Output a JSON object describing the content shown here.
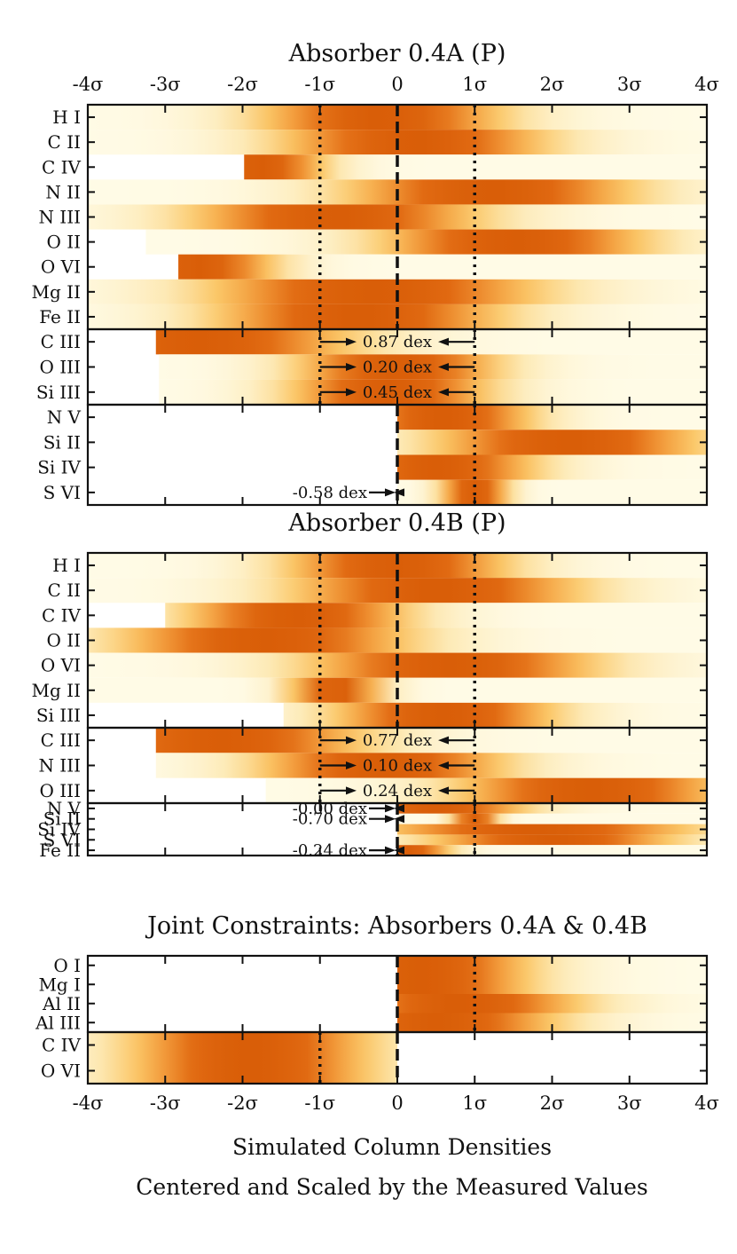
{
  "chart_data": {
    "type": "heatmap",
    "x_range": [
      -4,
      4
    ],
    "x_ticks": [
      "-4σ",
      "-3σ",
      "-2σ",
      "-1σ",
      "0",
      "1σ",
      "2σ",
      "3σ",
      "4σ"
    ],
    "x_tick_values": [
      -4,
      -3,
      -2,
      -1,
      0,
      1,
      2,
      3,
      4
    ],
    "xlabel_line1": "Simulated Column Densities",
    "xlabel_line2": "Centered and Scaled by the Measured Values",
    "colormap": [
      "#fffbe6",
      "#fde9b4",
      "#fbc768",
      "#f29a3a",
      "#e16a12",
      "#d95e08"
    ],
    "panels": [
      {
        "title": "Absorber 0.4A (P)",
        "groups": [
          {
            "kind": "detection",
            "rows": [
              {
                "label": "H I",
                "start": -4,
                "end": 4,
                "peak": -0.2,
                "width": 1.1
              },
              {
                "label": "C II",
                "start": -4,
                "end": 4,
                "peak": 0.2,
                "width": 1.2
              },
              {
                "label": "C IV",
                "start": -1.98,
                "end": 4,
                "peak": -1.8,
                "width": 0.6
              },
              {
                "label": "N II",
                "start": -4,
                "end": 4,
                "peak": 1.2,
                "width": 1.3
              },
              {
                "label": "N III",
                "start": -4,
                "end": 4,
                "peak": -0.8,
                "width": 1.3
              },
              {
                "label": "O II",
                "start": -3.25,
                "end": 4,
                "peak": 1.5,
                "width": 1.2
              },
              {
                "label": "O VI",
                "start": -2.83,
                "end": 4,
                "peak": -2.6,
                "width": 0.7
              },
              {
                "label": "Mg II",
                "start": -4,
                "end": 4,
                "peak": -0.3,
                "width": 1.5
              },
              {
                "label": "Fe II",
                "start": -4,
                "end": 4,
                "peak": -0.5,
                "width": 1.3
              }
            ]
          },
          {
            "kind": "saturated",
            "rows": [
              {
                "label": "C III",
                "start": -3.12,
                "end": 4,
                "peak": -2.6,
                "width": 1.4,
                "annotation": "0.87 dex"
              },
              {
                "label": "O III",
                "start": -3.08,
                "end": 4,
                "peak": 0.0,
                "width": 0.9,
                "annotation": "0.20 dex"
              },
              {
                "label": "Si III",
                "start": -3.08,
                "end": 4,
                "peak": -0.1,
                "width": 0.9,
                "annotation": "0.45 dex"
              }
            ]
          },
          {
            "kind": "upper_limit",
            "rows": [
              {
                "label": "N V",
                "start": 0,
                "end": 4,
                "peak": 0.6,
                "width": 0.8
              },
              {
                "label": "Si II",
                "start": 0,
                "end": 4,
                "peak": 2.2,
                "width": 1.2
              },
              {
                "label": "Si IV",
                "start": 0,
                "end": 4,
                "peak": 0.5,
                "width": 0.9
              },
              {
                "label": "S VI",
                "start": 0,
                "end": 4,
                "peak": 1.0,
                "width": 0.3,
                "annotation": "-0.58 dex"
              }
            ]
          }
        ]
      },
      {
        "title": "Absorber 0.4B (P)",
        "groups": [
          {
            "kind": "detection",
            "rows": [
              {
                "label": "H I",
                "start": -4,
                "end": 4,
                "peak": 0.0,
                "width": 1.0
              },
              {
                "label": "C II",
                "start": -4,
                "end": 4,
                "peak": 0.5,
                "width": 1.3
              },
              {
                "label": "C IV",
                "start": -3.0,
                "end": 4,
                "peak": -1.3,
                "width": 1.0
              },
              {
                "label": "O II",
                "start": -4,
                "end": 4,
                "peak": -1.7,
                "width": 1.3
              },
              {
                "label": "O VI",
                "start": -4,
                "end": 4,
                "peak": 0.7,
                "width": 1.3
              },
              {
                "label": "Mg II",
                "start": -4,
                "end": 4,
                "peak": -0.8,
                "width": 0.4
              },
              {
                "label": "Si III",
                "start": -1.47,
                "end": 4,
                "peak": 0.6,
                "width": 1.0
              }
            ]
          },
          {
            "kind": "saturated",
            "rows": [
              {
                "label": "C III",
                "start": -3.12,
                "end": 4,
                "peak": -2.3,
                "width": 1.3,
                "annotation": "0.77 dex"
              },
              {
                "label": "N III",
                "start": -3.12,
                "end": 4,
                "peak": -0.2,
                "width": 1.1,
                "annotation": "0.10 dex"
              },
              {
                "label": "O III",
                "start": -1.7,
                "end": 4,
                "peak": 2.5,
                "width": 1.2,
                "annotation": "0.24 dex"
              }
            ]
          },
          {
            "kind": "upper_limit",
            "rows": [
              {
                "label": "N V",
                "start": 0,
                "end": 4,
                "peak": 0.5,
                "width": 0.8,
                "annotation": "-0.00 dex"
              },
              {
                "label": "Si II",
                "start": 0,
                "end": 4,
                "peak": 1.0,
                "width": 0.2,
                "annotation": "-0.70 dex"
              },
              {
                "label": "Si IV",
                "start": 0,
                "end": 4,
                "peak": 1.8,
                "width": 1.4
              },
              {
                "label": "S VI",
                "start": 0,
                "end": 4,
                "peak": 2.0,
                "width": 1.1
              },
              {
                "label": "Fe II",
                "start": 0,
                "end": 4,
                "peak": 0.1,
                "width": 0.4,
                "annotation": "-0.24 dex"
              }
            ]
          }
        ]
      },
      {
        "title": "Joint Constraints: Absorbers 0.4A & 0.4B",
        "groups": [
          {
            "kind": "upper_limit",
            "rows": [
              {
                "label": "O I",
                "start": 0,
                "end": 4,
                "peak": 0.3,
                "width": 1.0
              },
              {
                "label": "Mg I",
                "start": 0,
                "end": 4,
                "peak": 0.3,
                "width": 1.0
              },
              {
                "label": "Al II",
                "start": 0,
                "end": 4,
                "peak": 0.8,
                "width": 1.1
              },
              {
                "label": "Al III",
                "start": 0,
                "end": 4,
                "peak": 0.5,
                "width": 1.1
              }
            ]
          },
          {
            "kind": "lower_limit",
            "rows": [
              {
                "label": "C IV",
                "start": -4,
                "end": 0,
                "peak": -1.9,
                "width": 1.1
              },
              {
                "label": "O VI",
                "start": -4,
                "end": 0,
                "peak": -1.9,
                "width": 1.1
              }
            ]
          }
        ]
      }
    ]
  }
}
